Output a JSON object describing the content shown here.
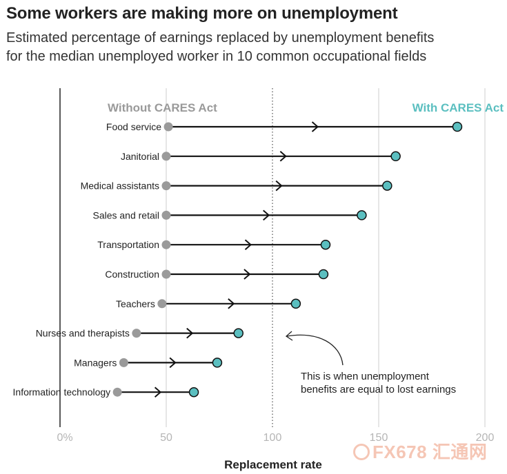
{
  "title": "Some workers are making more on unemployment",
  "subtitle_lines": [
    "Estimated percentage of earnings replaced by unemployment benefits",
    "for the median unemployed worker in 10 common occupational fields"
  ],
  "colors": {
    "without": "#9a9a9a",
    "with": "#5bbfc0",
    "line": "#111111",
    "grid": "#d6d6d6",
    "axis": "#222222"
  },
  "chart_data": {
    "type": "dumbbell",
    "title": "Some workers are making more on unemployment",
    "xlabel": "Replacement rate",
    "xlim": [
      0,
      200
    ],
    "ticks": [
      {
        "value": 0,
        "label": "0%"
      },
      {
        "value": 50,
        "label": "50"
      },
      {
        "value": 100,
        "label": "100"
      },
      {
        "value": 150,
        "label": "150"
      },
      {
        "value": 200,
        "label": "200"
      }
    ],
    "reference_line": 100,
    "legend": {
      "without": "Without CARES Act",
      "with": "With CARES Act"
    },
    "annotation": "This is when unemployment benefits are equal to lost earnings",
    "annotation_lines": [
      "This is when unemployment",
      "benefits are equal to lost earnings"
    ],
    "series": [
      {
        "name": "Without CARES Act",
        "key": "without"
      },
      {
        "name": "With CARES Act",
        "key": "with"
      }
    ],
    "categories": [
      "Food service",
      "Janitorial",
      "Medical assistants",
      "Sales and retail",
      "Transportation",
      "Construction",
      "Teachers",
      "Nurses and therapists",
      "Managers",
      "Information technology"
    ],
    "rows": [
      {
        "category": "Food service",
        "without": 51,
        "with": 187
      },
      {
        "category": "Janitorial",
        "without": 50,
        "with": 158
      },
      {
        "category": "Medical assistants",
        "without": 50,
        "with": 154
      },
      {
        "category": "Sales and retail",
        "without": 50,
        "with": 142
      },
      {
        "category": "Transportation",
        "without": 50,
        "with": 125
      },
      {
        "category": "Construction",
        "without": 50,
        "with": 124
      },
      {
        "category": "Teachers",
        "without": 48,
        "with": 111
      },
      {
        "category": "Nurses and therapists",
        "without": 36,
        "with": 84
      },
      {
        "category": "Managers",
        "without": 30,
        "with": 74
      },
      {
        "category": "Information technology",
        "without": 27,
        "with": 63
      }
    ]
  },
  "watermark": "FX678 汇通网"
}
